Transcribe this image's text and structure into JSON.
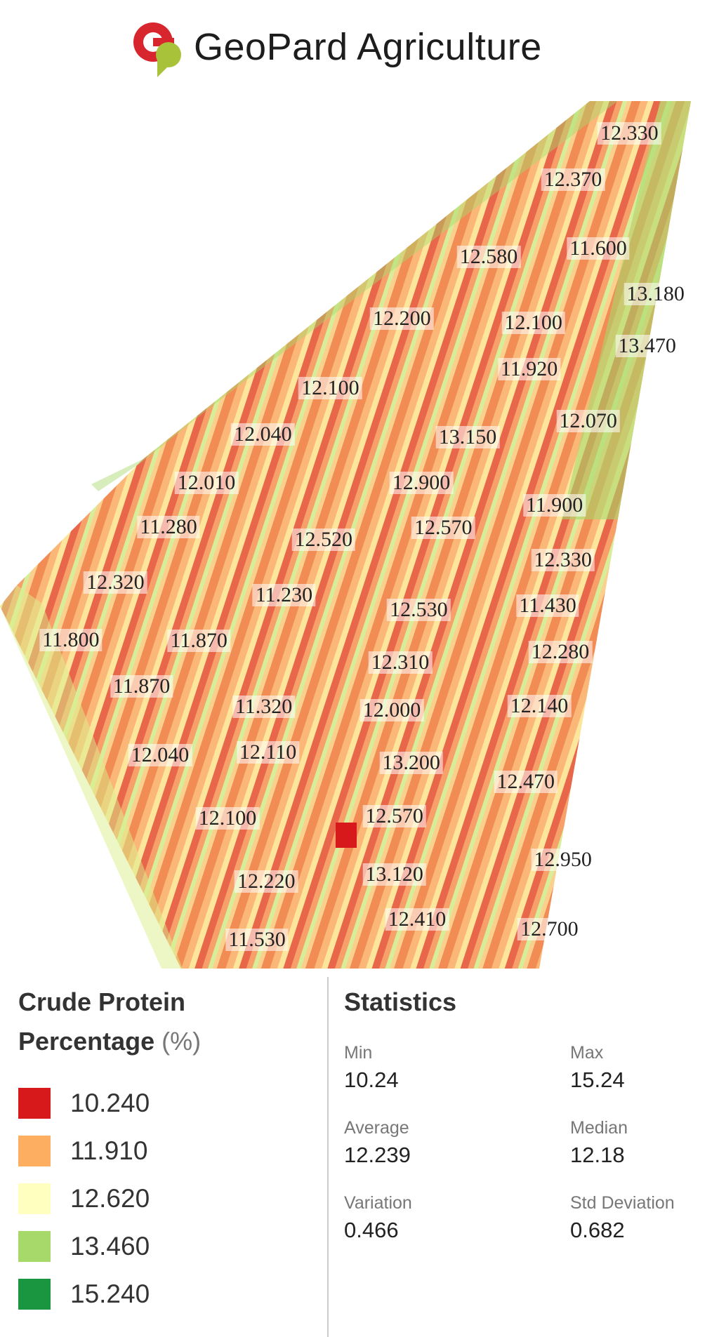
{
  "header": {
    "title": "GeoPard Agriculture"
  },
  "map": {
    "labels": [
      "12.330",
      "12.370",
      "12.580",
      "11.600",
      "13.180",
      "12.200",
      "12.100",
      "13.470",
      "11.920",
      "12.100",
      "12.070",
      "12.040",
      "13.150",
      "12.010",
      "12.900",
      "11.900",
      "11.280",
      "12.520",
      "12.570",
      "12.330",
      "12.320",
      "11.230",
      "12.530",
      "11.430",
      "11.800",
      "11.870",
      "12.310",
      "12.280",
      "11.870",
      "11.320",
      "12.000",
      "12.140",
      "12.040",
      "12.110",
      "13.200",
      "12.470",
      "12.100",
      "12.570",
      "12.950",
      "12.220",
      "13.120",
      "12.410",
      "12.700",
      "11.530"
    ]
  },
  "legend": {
    "title": "Crude Protein Percentage",
    "unit": "(%)",
    "items": [
      {
        "color": "#d7191c",
        "label": "10.240"
      },
      {
        "color": "#fdae61",
        "label": "11.910"
      },
      {
        "color": "#ffffbf",
        "label": "12.620"
      },
      {
        "color": "#a6d96a",
        "label": "13.460"
      },
      {
        "color": "#1a9641",
        "label": "15.240"
      }
    ]
  },
  "statistics": {
    "title": "Statistics",
    "items": [
      {
        "name": "Min",
        "value": "10.24"
      },
      {
        "name": "Max",
        "value": "15.24"
      },
      {
        "name": "Average",
        "value": "12.239"
      },
      {
        "name": "Median",
        "value": "12.18"
      },
      {
        "name": "Variation",
        "value": "0.466"
      },
      {
        "name": "Std Deviation",
        "value": "0.682"
      }
    ]
  }
}
